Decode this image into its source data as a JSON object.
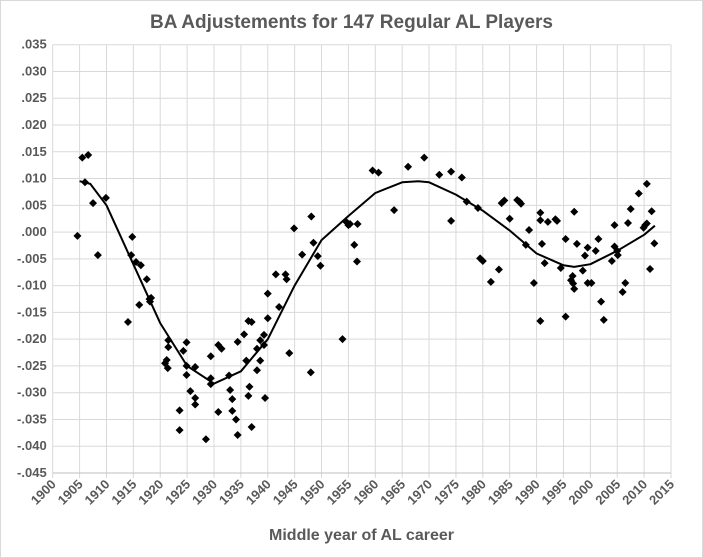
{
  "chart_data": {
    "type": "scatter",
    "title": "BA Adjustements  for 147 Regular AL Players",
    "xlabel": "Middle year of AL career",
    "ylabel": "",
    "xlim": [
      1900,
      2015
    ],
    "ylim": [
      -0.045,
      0.035
    ],
    "xticks": [
      1900,
      1905,
      1910,
      1915,
      1920,
      1925,
      1930,
      1935,
      1940,
      1945,
      1950,
      1955,
      1960,
      1965,
      1970,
      1975,
      1980,
      1985,
      1990,
      1995,
      2000,
      2005,
      2010,
      2015
    ],
    "yticks": [
      0.035,
      0.03,
      0.025,
      0.02,
      0.015,
      0.01,
      0.005,
      0.0,
      -0.005,
      -0.01,
      -0.015,
      -0.02,
      -0.025,
      -0.03,
      -0.035,
      -0.04,
      -0.045
    ],
    "ytick_labels": [
      ".035",
      ".030",
      ".025",
      ".020",
      ".015",
      ".010",
      ".005",
      ".000",
      "-.005",
      "-.010",
      "-.015",
      "-.020",
      "-.025",
      "-.030",
      "-.035",
      "-.040",
      "-.045"
    ],
    "grid": true,
    "marker": "diamond",
    "marker_color": "#000000",
    "grid_color": "#d9d9d9",
    "points": [
      [
        1904.6,
        -0.0007
      ],
      [
        1905.5,
        0.0139
      ],
      [
        1906.6,
        0.0144
      ],
      [
        1906.0,
        0.0093
      ],
      [
        1907.5,
        0.0054
      ],
      [
        1908.4,
        -0.0043
      ],
      [
        1909.9,
        0.0064
      ],
      [
        1914.8,
        -0.0009
      ],
      [
        1914.6,
        -0.0043
      ],
      [
        1915.5,
        -0.0056
      ],
      [
        1916.4,
        -0.0062
      ],
      [
        1917.5,
        -0.0088
      ],
      [
        1914.0,
        -0.0168
      ],
      [
        1916.1,
        -0.0136
      ],
      [
        1918.0,
        -0.0125
      ],
      [
        1918.3,
        -0.0123
      ],
      [
        1918.1,
        -0.013
      ],
      [
        1921.5,
        -0.0202
      ],
      [
        1921.5,
        -0.0215
      ],
      [
        1920.9,
        -0.0245
      ],
      [
        1921.2,
        -0.0239
      ],
      [
        1921.4,
        -0.0254
      ],
      [
        1923.6,
        -0.0333
      ],
      [
        1923.6,
        -0.037
      ],
      [
        1924.3,
        -0.0222
      ],
      [
        1924.9,
        -0.0206
      ],
      [
        1924.9,
        -0.025
      ],
      [
        1924.9,
        -0.0267
      ],
      [
        1925.6,
        -0.0297
      ],
      [
        1926.5,
        -0.0252
      ],
      [
        1926.5,
        -0.031
      ],
      [
        1926.5,
        -0.0322
      ],
      [
        1929.4,
        -0.0232
      ],
      [
        1929.4,
        -0.0273
      ],
      [
        1929.4,
        -0.0284
      ],
      [
        1928.5,
        -0.0387
      ],
      [
        1930.8,
        -0.0211
      ],
      [
        1931.4,
        -0.0218
      ],
      [
        1930.8,
        -0.0336
      ],
      [
        1932.8,
        -0.0268
      ],
      [
        1933.0,
        -0.0295
      ],
      [
        1933.4,
        -0.0312
      ],
      [
        1933.4,
        -0.0334
      ],
      [
        1934.1,
        -0.035
      ],
      [
        1934.4,
        -0.0379
      ],
      [
        1934.4,
        -0.0205
      ],
      [
        1935.6,
        -0.0191
      ],
      [
        1936.0,
        -0.024
      ],
      [
        1936.4,
        -0.0306
      ],
      [
        1936.4,
        -0.0166
      ],
      [
        1937.0,
        -0.0168
      ],
      [
        1936.6,
        -0.0289
      ],
      [
        1937.0,
        -0.0364
      ],
      [
        1938.0,
        -0.0218
      ],
      [
        1938.0,
        -0.0258
      ],
      [
        1938.6,
        -0.0202
      ],
      [
        1938.6,
        -0.024
      ],
      [
        1939.3,
        -0.0192
      ],
      [
        1939.3,
        -0.0211
      ],
      [
        1939.5,
        -0.031
      ],
      [
        1940.0,
        -0.0115
      ],
      [
        1940.0,
        -0.0161
      ],
      [
        1941.5,
        -0.0079
      ],
      [
        1942.1,
        -0.014
      ],
      [
        1943.3,
        -0.0079
      ],
      [
        1943.5,
        -0.0088
      ],
      [
        1944.0,
        -0.0226
      ],
      [
        1948.0,
        -0.0262
      ],
      [
        1953.9,
        -0.02
      ],
      [
        1944.9,
        0.0007
      ],
      [
        1946.4,
        -0.0042
      ],
      [
        1948.1,
        0.0029
      ],
      [
        1948.5,
        -0.002
      ],
      [
        1949.3,
        -0.0045
      ],
      [
        1949.8,
        -0.0063
      ],
      [
        1954.5,
        0.002
      ],
      [
        1955.3,
        0.0015
      ],
      [
        1956.7,
        0.0015
      ],
      [
        1956.1,
        -0.0024
      ],
      [
        1956.6,
        -0.0055
      ],
      [
        1955.0,
        0.0013
      ],
      [
        1959.5,
        0.0115
      ],
      [
        1960.6,
        0.0111
      ],
      [
        1963.5,
        0.0041
      ],
      [
        1966.1,
        0.0122
      ],
      [
        1969.1,
        0.0139
      ],
      [
        1971.9,
        0.0107
      ],
      [
        1974.1,
        0.0113
      ],
      [
        1974.1,
        0.0021
      ],
      [
        1976.1,
        0.0102
      ],
      [
        1977.0,
        0.0057
      ],
      [
        1979.1,
        0.0045
      ],
      [
        1979.5,
        -0.0049
      ],
      [
        1980.0,
        -0.0054
      ],
      [
        1981.5,
        -0.0093
      ],
      [
        1983.0,
        -0.007
      ],
      [
        1983.5,
        0.0054
      ],
      [
        1984.0,
        0.0059
      ],
      [
        1985.0,
        0.0025
      ],
      [
        1986.4,
        0.006
      ],
      [
        1986.8,
        0.0057
      ],
      [
        1987.1,
        0.0053
      ],
      [
        1988.0,
        -0.0024
      ],
      [
        1988.6,
        0.0004
      ],
      [
        1989.5,
        -0.0095
      ],
      [
        1990.7,
        0.0036
      ],
      [
        1990.7,
        0.0022
      ],
      [
        1990.7,
        -0.0166
      ],
      [
        1991.0,
        -0.0022
      ],
      [
        1991.5,
        -0.0058
      ],
      [
        1992.1,
        0.0019
      ],
      [
        1993.5,
        0.0024
      ],
      [
        1993.8,
        0.0021
      ],
      [
        1994.5,
        -0.0067
      ],
      [
        1995.4,
        -0.0013
      ],
      [
        1995.4,
        -0.0158
      ],
      [
        1997.0,
        0.0038
      ],
      [
        1996.4,
        -0.009
      ],
      [
        1996.7,
        -0.0082
      ],
      [
        1996.8,
        -0.0096
      ],
      [
        1997.0,
        -0.0106
      ],
      [
        1997.5,
        -0.0022
      ],
      [
        1998.6,
        -0.0072
      ],
      [
        1999.0,
        -0.0044
      ],
      [
        1999.5,
        -0.0029
      ],
      [
        1999.5,
        -0.0095
      ],
      [
        2000.2,
        -0.0095
      ],
      [
        2001.0,
        -0.0035
      ],
      [
        2001.5,
        -0.0013
      ],
      [
        2002.0,
        -0.013
      ],
      [
        2002.5,
        -0.0164
      ],
      [
        2004.0,
        -0.0054
      ],
      [
        2004.5,
        0.0013
      ],
      [
        2004.5,
        -0.0027
      ],
      [
        2005.0,
        -0.0035
      ],
      [
        2005.1,
        -0.0043
      ],
      [
        2006.0,
        -0.0112
      ],
      [
        2006.5,
        -0.0095
      ],
      [
        2007.0,
        0.0017
      ],
      [
        2007.5,
        0.0043
      ],
      [
        2009.0,
        0.0072
      ],
      [
        2009.9,
        0.0008
      ],
      [
        2010.2,
        0.0013
      ],
      [
        2010.5,
        0.0016
      ],
      [
        2010.5,
        0.009
      ],
      [
        2011.1,
        -0.0069
      ],
      [
        2011.4,
        0.0039
      ],
      [
        2011.9,
        -0.0021
      ]
    ],
    "trendline": [
      [
        1905,
        0.0095
      ],
      [
        1907,
        0.009
      ],
      [
        1910,
        0.005
      ],
      [
        1915,
        -0.006
      ],
      [
        1920,
        -0.017
      ],
      [
        1925,
        -0.025
      ],
      [
        1930,
        -0.0283
      ],
      [
        1935,
        -0.026
      ],
      [
        1940,
        -0.02
      ],
      [
        1945,
        -0.01
      ],
      [
        1950,
        -0.0015
      ],
      [
        1955,
        0.003
      ],
      [
        1960,
        0.0073
      ],
      [
        1965,
        0.0093
      ],
      [
        1968,
        0.0095
      ],
      [
        1970,
        0.0093
      ],
      [
        1975,
        0.007
      ],
      [
        1980,
        0.004
      ],
      [
        1985,
        0.0003
      ],
      [
        1990,
        -0.004
      ],
      [
        1995,
        -0.0062
      ],
      [
        1997,
        -0.0065
      ],
      [
        2000,
        -0.006
      ],
      [
        2005,
        -0.0035
      ],
      [
        2010,
        -0.0005
      ],
      [
        2012,
        0.0012
      ]
    ]
  }
}
